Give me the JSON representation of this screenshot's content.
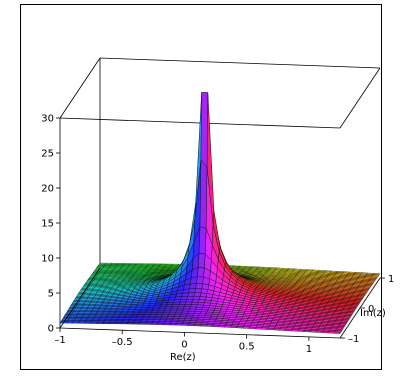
{
  "chart_data": {
    "type": "surface",
    "title": "",
    "xlabel": "Re(z)",
    "ylabel": "Im(z)",
    "zlabel": "",
    "x_range": [
      -1,
      1.25
    ],
    "y_range": [
      -1,
      1
    ],
    "z_range": [
      0,
      30
    ],
    "x_ticks": [
      -1,
      -0.5,
      0,
      0.5,
      1
    ],
    "x_tick_labels": [
      "–1",
      "–0.5",
      "0",
      "0.5",
      "1"
    ],
    "y_ticks": [
      -1,
      0,
      1
    ],
    "y_tick_labels": [
      "–1",
      "0",
      "1"
    ],
    "z_ticks": [
      0,
      5,
      10,
      15,
      20,
      25,
      30
    ],
    "z_tick_labels": [
      "0",
      "5",
      "10",
      "15",
      "20",
      "25",
      "30"
    ],
    "pole_location": [
      0,
      0
    ],
    "z_clip": 30,
    "coloring": "argument-rainbow"
  }
}
